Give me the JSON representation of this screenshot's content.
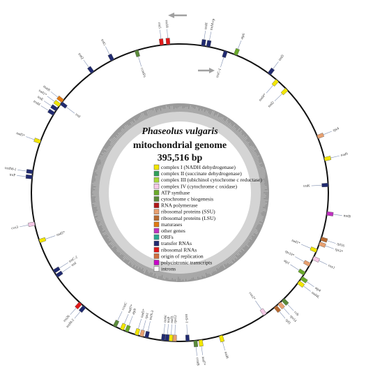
{
  "title": {
    "species": "Phaseolus vulgaris",
    "subtitle": "mitochondrial genome",
    "size": "395,516 bp"
  },
  "colors": {
    "ring": "#111111",
    "gc_outer": "#9a9a9a",
    "gc_inner": "#d4d4d4",
    "leader": "#7f8fb0",
    "arrow": "#a0a0a0"
  },
  "legend": [
    {
      "label": "complex I (NADH dehydrogenase)",
      "color": "#f2e600"
    },
    {
      "label": "complex II (succinate dehydrogenase)",
      "color": "#2fa05a"
    },
    {
      "label": "complex III (ubichinol cytochrome c reductase)",
      "color": "#a8d83a"
    },
    {
      "label": "complex IV (cytochrome c oxidase)",
      "color": "#f5c8e6"
    },
    {
      "label": "ATP synthase",
      "color": "#6aaa2a"
    },
    {
      "label": "cytochrome c biogenesis",
      "color": "#5a8a3a"
    },
    {
      "label": "RNA polymerase",
      "color": "#b01818"
    },
    {
      "label": "ribosomal proteins (SSU)",
      "color": "#e8a070"
    },
    {
      "label": "ribosomal proteins (LSU)",
      "color": "#b86a30"
    },
    {
      "label": "maturases",
      "color": "#e07a10"
    },
    {
      "label": "other genes",
      "color": "#c030c0"
    },
    {
      "label": "ORFs",
      "color": "#2aa890"
    },
    {
      "label": "transfer RNAs",
      "color": "#202a70"
    },
    {
      "label": "ribosomal RNAs",
      "color": "#e01a1a"
    },
    {
      "label": "origin of replication",
      "color": "#d07040"
    },
    {
      "label": "polycistronic transcripts",
      "color": "#c800c8"
    },
    {
      "label": "introns",
      "color": "#ffffff"
    }
  ],
  "genes": [
    {
      "label": "trnH",
      "angle": 9,
      "side": "out",
      "color": "#202a70"
    },
    {
      "label": "trnM-cp",
      "angle": 11,
      "side": "out",
      "color": "#202a70"
    },
    {
      "label": "rrn5",
      "angle": 353,
      "side": "out",
      "color": "#e01a1a"
    },
    {
      "label": "rrn18",
      "angle": 355.5,
      "side": "out",
      "color": "#e01a1a"
    },
    {
      "label": "atp6",
      "angle": 22,
      "side": "out",
      "color": "#6aaa2a"
    },
    {
      "label": "trnC-1",
      "angle": 18,
      "side": "in",
      "color": "#202a70"
    },
    {
      "label": "trnD",
      "angle": 37,
      "side": "out",
      "color": "#202a70"
    },
    {
      "label": "nad4*",
      "angle": 41,
      "side": "in",
      "color": "#f2e600"
    },
    {
      "label": "nad2",
      "angle": 46,
      "side": "in",
      "color": "#f2e600"
    },
    {
      "label": "rps4",
      "angle": 68,
      "side": "out",
      "color": "#e8a070"
    },
    {
      "label": "nad9",
      "angle": 77,
      "side": "out",
      "color": "#f2e600"
    },
    {
      "label": "trnK",
      "angle": 87,
      "side": "in",
      "color": "#202a70"
    },
    {
      "label": "mttB",
      "angle": 98,
      "side": "out",
      "color": "#c030c0"
    },
    {
      "label": "rpl16",
      "angle": 108,
      "side": "out",
      "color": "#b86a30"
    },
    {
      "label": "rps3*",
      "angle": 110,
      "side": "out",
      "color": "#e8a070"
    },
    {
      "label": "nad1*",
      "angle": 113,
      "side": "in",
      "color": "#f2e600"
    },
    {
      "label": "cox1",
      "angle": 116,
      "side": "out",
      "color": "#f5c8e6"
    },
    {
      "label": "rps10*",
      "angle": 119,
      "side": "in",
      "color": "#e8a070"
    },
    {
      "label": "atp1",
      "angle": 123,
      "side": "in",
      "color": "#6aaa2a"
    },
    {
      "label": "atp4",
      "angle": 125,
      "side": "out",
      "color": "#6aaa2a"
    },
    {
      "label": "nad4L",
      "angle": 127,
      "side": "out",
      "color": "#f2e600"
    },
    {
      "label": "ccb",
      "angle": 136,
      "side": "out",
      "color": "#5a8a3a"
    },
    {
      "label": "rps14",
      "angle": 138,
      "side": "out",
      "color": "#e8a070"
    },
    {
      "label": "rpl5",
      "angle": 140,
      "side": "out",
      "color": "#b86a30"
    },
    {
      "label": "cox2*",
      "angle": 145,
      "side": "in",
      "color": "#f5c8e6"
    },
    {
      "label": "nad6",
      "angle": 164,
      "side": "out",
      "color": "#f2e600"
    },
    {
      "label": "nad7*",
      "angle": 172,
      "side": "out",
      "color": "#f2e600"
    },
    {
      "label": "ccmB",
      "angle": 174,
      "side": "out",
      "color": "#5a8a3a"
    },
    {
      "label": "trnS-1",
      "angle": 177,
      "side": "in",
      "color": "#202a70"
    },
    {
      "label": "rps12",
      "angle": 182,
      "side": "in",
      "color": "#e8a070"
    },
    {
      "label": "nad3",
      "angle": 183.5,
      "side": "in",
      "color": "#f2e600"
    },
    {
      "label": "trnP",
      "angle": 185,
      "side": "in",
      "color": "#202a70"
    },
    {
      "label": "trnW",
      "angle": 186.5,
      "side": "in",
      "color": "#202a70"
    },
    {
      "label": "trnN-3",
      "angle": 193,
      "side": "in",
      "color": "#202a70"
    },
    {
      "label": "rps1",
      "angle": 195,
      "side": "in",
      "color": "#e8a070"
    },
    {
      "label": "nad5*",
      "angle": 197,
      "side": "in",
      "color": "#f2e600"
    },
    {
      "label": "atp9",
      "angle": 201,
      "side": "in",
      "color": "#6aaa2a"
    },
    {
      "label": "nad7*",
      "angle": 203,
      "side": "in",
      "color": "#f2e600"
    },
    {
      "label": "ccmC",
      "angle": 206,
      "side": "in",
      "color": "#5a8a3a"
    },
    {
      "label": "trnM-2",
      "angle": 220,
      "side": "out",
      "color": "#202a70"
    },
    {
      "label": "rrn26",
      "angle": 222,
      "side": "out",
      "color": "#e01a1a"
    },
    {
      "label": "trnI",
      "angle": 236,
      "side": "in",
      "color": "#202a70"
    },
    {
      "label": "trnC-2",
      "angle": 238,
      "side": "in",
      "color": "#202a70"
    },
    {
      "label": "nad2*",
      "angle": 251,
      "side": "in",
      "color": "#f2e600"
    },
    {
      "label": "cox3",
      "angle": 258,
      "side": "out",
      "color": "#f5c8e6"
    },
    {
      "label": "trnP",
      "angle": 276,
      "side": "out",
      "color": "#202a70"
    },
    {
      "label": "trnfM-1",
      "angle": 278,
      "side": "out",
      "color": "#202a70"
    },
    {
      "label": "nad5*",
      "angle": 290,
      "side": "out",
      "color": "#f2e600"
    },
    {
      "label": "trnM",
      "angle": 302,
      "side": "out",
      "color": "#202a70"
    },
    {
      "label": "trnE",
      "angle": 304,
      "side": "out",
      "color": "#202a70"
    },
    {
      "label": "nad1*",
      "angle": 306,
      "side": "out",
      "color": "#f2e600"
    },
    {
      "label": "matR",
      "angle": 308,
      "side": "out",
      "color": "#e07a10"
    },
    {
      "label": "trnI",
      "angle": 307,
      "side": "in",
      "color": "#202a70"
    },
    {
      "label": "trnQ",
      "angle": 324,
      "side": "out",
      "color": "#202a70"
    },
    {
      "label": "trnG",
      "angle": 333,
      "side": "out",
      "color": "#202a70"
    },
    {
      "label": "ccmFn",
      "angle": 343,
      "side": "in",
      "color": "#5a8a3a"
    }
  ]
}
